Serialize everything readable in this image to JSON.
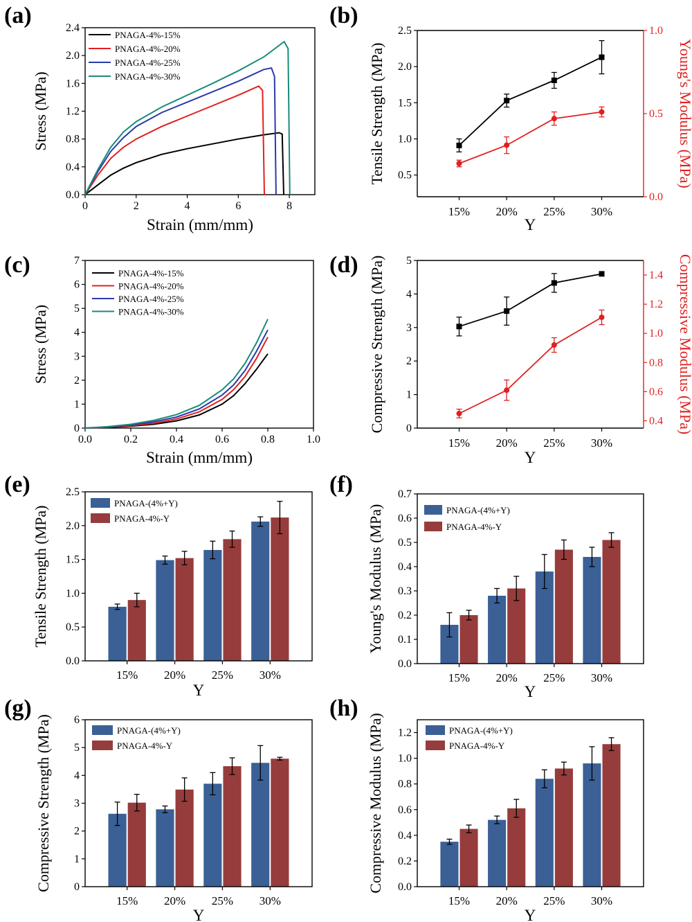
{
  "figure": {
    "panels": {
      "a": {
        "letter": "(a)"
      },
      "b": {
        "letter": "(b)"
      },
      "c": {
        "letter": "(c)"
      },
      "d": {
        "letter": "(d)"
      },
      "e": {
        "letter": "(e)"
      },
      "f": {
        "letter": "(f)"
      },
      "g": {
        "letter": "(g)"
      },
      "h": {
        "letter": "(h)"
      }
    }
  },
  "chart_data": [
    {
      "panel": "a",
      "type": "line",
      "xlabel": "Strain (mm/mm)",
      "ylabel": "Stress (MPa)",
      "xlim": [
        0,
        9
      ],
      "ylim": [
        0,
        2.4
      ],
      "xticks": [
        0,
        2,
        4,
        6,
        8
      ],
      "yticks": [
        0.0,
        0.4,
        0.8,
        1.2,
        1.6,
        2.0,
        2.4
      ],
      "yticklabels": [
        "0.0",
        "0.4",
        "0.8",
        "1.2",
        "1.6",
        "2.0",
        "2.4"
      ],
      "legend_position": "top-left",
      "series": [
        {
          "name": "PNAGA-4%-15%",
          "color": "#000000",
          "x": [
            0,
            0.5,
            1,
            1.5,
            2,
            3,
            4,
            5,
            6,
            7,
            7.6,
            7.72,
            7.78
          ],
          "y": [
            0,
            0.14,
            0.28,
            0.38,
            0.46,
            0.58,
            0.66,
            0.73,
            0.8,
            0.86,
            0.89,
            0.87,
            0
          ]
        },
        {
          "name": "PNAGA-4%-20%",
          "color": "#e02020",
          "x": [
            0,
            0.5,
            1,
            1.5,
            2,
            3,
            4,
            5,
            6,
            6.8,
            6.95,
            7.02
          ],
          "y": [
            0,
            0.28,
            0.52,
            0.68,
            0.8,
            0.98,
            1.13,
            1.28,
            1.43,
            1.56,
            1.5,
            0
          ]
        },
        {
          "name": "PNAGA-4%-25%",
          "color": "#2a3aa8",
          "x": [
            0,
            0.5,
            1,
            1.5,
            2,
            3,
            4,
            5,
            6,
            7,
            7.3,
            7.42,
            7.48
          ],
          "y": [
            0,
            0.33,
            0.62,
            0.82,
            0.98,
            1.18,
            1.33,
            1.48,
            1.63,
            1.8,
            1.82,
            1.7,
            0
          ]
        },
        {
          "name": "PNAGA-4%-30%",
          "color": "#1a8a7a",
          "x": [
            0,
            0.5,
            1,
            1.5,
            2,
            3,
            4,
            5,
            6,
            7,
            7.8,
            7.95,
            8.02
          ],
          "y": [
            0,
            0.36,
            0.68,
            0.9,
            1.05,
            1.26,
            1.43,
            1.6,
            1.78,
            1.98,
            2.2,
            2.1,
            0
          ]
        }
      ]
    },
    {
      "panel": "b",
      "type": "line",
      "categories": [
        "15%",
        "20%",
        "25%",
        "30%"
      ],
      "xlabel": "Y",
      "ylabel": "Tensile Strength (MPa)",
      "ylabel_right": "Young's Modulus (MPa)",
      "ylim": [
        0.2,
        2.5
      ],
      "yticks": [
        0.5,
        1.0,
        1.5,
        2.0,
        2.5
      ],
      "yticklabels": [
        "0.5",
        "1.0",
        "1.5",
        "2.0",
        "2.5"
      ],
      "ylim_right": [
        0,
        1.0
      ],
      "yticks_right": [
        0,
        0.5,
        1.0
      ],
      "yticklabels_right": [
        "0.0",
        "0.5",
        "1.0"
      ],
      "series": [
        {
          "name": "",
          "axis": "left",
          "color": "#000000",
          "marker": "square",
          "values": [
            0.91,
            1.53,
            1.81,
            2.13
          ],
          "errors": [
            0.09,
            0.09,
            0.11,
            0.23
          ]
        },
        {
          "name": "",
          "axis": "right",
          "color": "#e02020",
          "marker": "circle",
          "values": [
            0.2,
            0.31,
            0.47,
            0.51
          ],
          "errors": [
            0.02,
            0.05,
            0.04,
            0.03
          ]
        }
      ]
    },
    {
      "panel": "c",
      "type": "line",
      "xlabel": "Strain (mm/mm)",
      "ylabel": "Stress (MPa)",
      "xlim": [
        0,
        1.0
      ],
      "ylim": [
        0,
        7
      ],
      "xticks": [
        0.0,
        0.2,
        0.4,
        0.6,
        0.8,
        1.0
      ],
      "xticklabels": [
        "0.0",
        "0.2",
        "0.4",
        "0.6",
        "0.8",
        "1.0"
      ],
      "yticks": [
        0,
        1,
        2,
        3,
        4,
        5,
        6,
        7
      ],
      "legend_position": "top-left",
      "series": [
        {
          "name": "PNAGA-4%-15%",
          "color": "#000000",
          "x": [
            0,
            0.1,
            0.2,
            0.3,
            0.4,
            0.5,
            0.6,
            0.65,
            0.7,
            0.75,
            0.8
          ],
          "y": [
            0,
            0.03,
            0.08,
            0.16,
            0.3,
            0.55,
            1.0,
            1.35,
            1.85,
            2.45,
            3.1
          ]
        },
        {
          "name": "PNAGA-4%-20%",
          "color": "#e02020",
          "x": [
            0,
            0.1,
            0.2,
            0.3,
            0.4,
            0.5,
            0.6,
            0.65,
            0.7,
            0.75,
            0.8
          ],
          "y": [
            0,
            0.04,
            0.1,
            0.2,
            0.38,
            0.68,
            1.2,
            1.6,
            2.15,
            2.9,
            3.8
          ]
        },
        {
          "name": "PNAGA-4%-25%",
          "color": "#2a3aa8",
          "x": [
            0,
            0.1,
            0.2,
            0.3,
            0.4,
            0.5,
            0.6,
            0.65,
            0.7,
            0.75,
            0.8
          ],
          "y": [
            0,
            0.05,
            0.13,
            0.26,
            0.46,
            0.8,
            1.38,
            1.8,
            2.4,
            3.2,
            4.1
          ]
        },
        {
          "name": "PNAGA-4%-30%",
          "color": "#1a8a7a",
          "x": [
            0,
            0.1,
            0.2,
            0.3,
            0.4,
            0.5,
            0.6,
            0.65,
            0.7,
            0.75,
            0.8
          ],
          "y": [
            0,
            0.06,
            0.16,
            0.32,
            0.56,
            0.95,
            1.6,
            2.05,
            2.7,
            3.55,
            4.55
          ]
        }
      ]
    },
    {
      "panel": "d",
      "type": "line",
      "categories": [
        "15%",
        "20%",
        "25%",
        "30%"
      ],
      "xlabel": "Y",
      "ylabel": "Compressive Strength (MPa)",
      "ylabel_right": "Compressive Modulus (MPa)",
      "ylim": [
        0,
        5
      ],
      "yticks": [
        0,
        1,
        2,
        3,
        4,
        5
      ],
      "ylim_right": [
        0.35,
        1.5
      ],
      "yticks_right": [
        0.4,
        0.6,
        0.8,
        1.0,
        1.2,
        1.4
      ],
      "yticklabels_right": [
        "0.4",
        "0.6",
        "0.8",
        "1.0",
        "1.2",
        "1.4"
      ],
      "series": [
        {
          "name": "",
          "axis": "left",
          "color": "#000000",
          "marker": "square",
          "values": [
            3.03,
            3.49,
            4.33,
            4.6
          ],
          "errors": [
            0.28,
            0.42,
            0.28,
            0.04
          ]
        },
        {
          "name": "",
          "axis": "right",
          "color": "#e02020",
          "marker": "circle",
          "values": [
            0.45,
            0.61,
            0.92,
            1.11
          ],
          "errors": [
            0.03,
            0.07,
            0.05,
            0.05
          ]
        }
      ]
    },
    {
      "panel": "e",
      "type": "bar",
      "categories": [
        "15%",
        "20%",
        "25%",
        "30%"
      ],
      "xlabel": "Y",
      "ylabel": "Tensile Strength (MPa)",
      "ylim": [
        0,
        2.5
      ],
      "yticks": [
        0.0,
        0.5,
        1.0,
        1.5,
        2.0,
        2.5
      ],
      "yticklabels": [
        "0.0",
        "0.5",
        "1.0",
        "1.5",
        "2.0",
        "2.5"
      ],
      "legend_position": "top-left",
      "series": [
        {
          "name": "PNAGA-(4%+Y)",
          "color": "#3a6096",
          "values": [
            0.8,
            1.49,
            1.64,
            2.06
          ],
          "errors": [
            0.04,
            0.06,
            0.13,
            0.07
          ]
        },
        {
          "name": "PNAGA-4%-Y",
          "color": "#963c3c",
          "values": [
            0.9,
            1.52,
            1.8,
            2.12
          ],
          "errors": [
            0.1,
            0.1,
            0.12,
            0.24
          ]
        }
      ]
    },
    {
      "panel": "f",
      "type": "bar",
      "categories": [
        "15%",
        "20%",
        "25%",
        "30%"
      ],
      "xlabel": "Y",
      "ylabel": "Young's Modulus (MPa)",
      "ylim": [
        0,
        0.7
      ],
      "yticks": [
        0.0,
        0.1,
        0.2,
        0.3,
        0.4,
        0.5,
        0.6,
        0.7
      ],
      "yticklabels": [
        "0.0",
        "0.1",
        "0.2",
        "0.3",
        "0.4",
        "0.5",
        "0.6",
        "0.7"
      ],
      "legend_position": "top-left",
      "series": [
        {
          "name": "PNAGA-(4%+Y)",
          "color": "#3a6096",
          "values": [
            0.16,
            0.28,
            0.38,
            0.44
          ],
          "errors": [
            0.05,
            0.03,
            0.07,
            0.04
          ]
        },
        {
          "name": "PNAGA-4%-Y",
          "color": "#963c3c",
          "values": [
            0.2,
            0.31,
            0.47,
            0.51
          ],
          "errors": [
            0.02,
            0.05,
            0.04,
            0.03
          ]
        }
      ]
    },
    {
      "panel": "g",
      "type": "bar",
      "categories": [
        "15%",
        "20%",
        "25%",
        "30%"
      ],
      "xlabel": "Y",
      "ylabel": "Compressive Strength (MPa)",
      "ylim": [
        0,
        6
      ],
      "yticks": [
        0,
        1,
        2,
        3,
        4,
        5,
        6
      ],
      "legend_position": "top-left",
      "series": [
        {
          "name": "PNAGA-(4%+Y)",
          "color": "#3a6096",
          "values": [
            2.62,
            2.78,
            3.7,
            4.45
          ],
          "errors": [
            0.42,
            0.12,
            0.4,
            0.62
          ]
        },
        {
          "name": "PNAGA-4%-Y",
          "color": "#963c3c",
          "values": [
            3.02,
            3.49,
            4.33,
            4.6
          ],
          "errors": [
            0.3,
            0.42,
            0.3,
            0.05
          ]
        }
      ]
    },
    {
      "panel": "h",
      "type": "bar",
      "categories": [
        "15%",
        "20%",
        "25%",
        "30%"
      ],
      "xlabel": "Y",
      "ylabel": "Compressive Modulus (MPa)",
      "ylim": [
        0,
        1.3
      ],
      "yticks": [
        0.0,
        0.2,
        0.4,
        0.6,
        0.8,
        1.0,
        1.2
      ],
      "yticklabels": [
        "0.0",
        "0.2",
        "0.4",
        "0.6",
        "0.8",
        "1.0",
        "1.2"
      ],
      "legend_position": "top-left",
      "series": [
        {
          "name": "PNAGA-(4%+Y)",
          "color": "#3a6096",
          "values": [
            0.35,
            0.52,
            0.84,
            0.96
          ],
          "errors": [
            0.02,
            0.03,
            0.07,
            0.13
          ]
        },
        {
          "name": "PNAGA-4%-Y",
          "color": "#963c3c",
          "values": [
            0.45,
            0.61,
            0.92,
            1.11
          ],
          "errors": [
            0.03,
            0.07,
            0.05,
            0.05
          ]
        }
      ]
    }
  ]
}
